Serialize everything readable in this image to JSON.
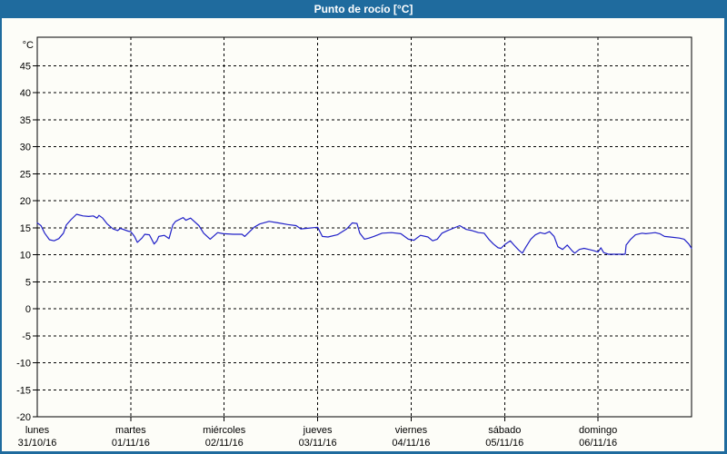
{
  "window": {
    "title": "Punto de rocío [°C]"
  },
  "colors": {
    "titlebar_bg": "#1F6B9E",
    "frame": "#1F6B9E",
    "page_bg": "#FDFDF8",
    "plot_border": "#000000",
    "grid": "#000000",
    "line": "#2121C8",
    "title_text": "#FFFFFF",
    "label_text": "#000000"
  },
  "chart_data": {
    "type": "line",
    "title": "Punto de rocío [°C]",
    "ylabel": "°C",
    "ylim": [
      -20,
      50.3
    ],
    "yticks": [
      45,
      40,
      35,
      30,
      25,
      20,
      15,
      10,
      5,
      0,
      -5,
      -10,
      -15,
      -20
    ],
    "grid": "dashed",
    "legend": "none",
    "days": [
      {
        "name": "lunes",
        "date": "31/10/16"
      },
      {
        "name": "martes",
        "date": "01/11/16"
      },
      {
        "name": "miércoles",
        "date": "02/11/16"
      },
      {
        "name": "jueves",
        "date": "03/11/16"
      },
      {
        "name": "viernes",
        "date": "04/11/16"
      },
      {
        "name": "sábado",
        "date": "05/11/16"
      },
      {
        "name": "domingo",
        "date": "06/11/16"
      }
    ],
    "series": [
      {
        "name": "Punto de rocío",
        "x_unit": "days_from_start",
        "x": [
          0.0,
          0.04,
          0.08,
          0.13,
          0.18,
          0.23,
          0.28,
          0.31,
          0.36,
          0.42,
          0.49,
          0.55,
          0.6,
          0.64,
          0.66,
          0.7,
          0.75,
          0.81,
          0.86,
          0.89,
          0.97,
          1.0,
          1.04,
          1.07,
          1.12,
          1.15,
          1.2,
          1.25,
          1.28,
          1.3,
          1.36,
          1.41,
          1.45,
          1.48,
          1.56,
          1.59,
          1.64,
          1.73,
          1.78,
          1.85,
          1.93,
          1.99,
          2.1,
          2.19,
          2.22,
          2.32,
          2.38,
          2.48,
          2.58,
          2.68,
          2.77,
          2.82,
          2.88,
          3.0,
          3.05,
          3.11,
          3.21,
          3.31,
          3.37,
          3.42,
          3.45,
          3.5,
          3.55,
          3.6,
          3.69,
          3.79,
          3.89,
          3.97,
          4.03,
          4.1,
          4.18,
          4.23,
          4.28,
          4.33,
          4.39,
          4.52,
          4.59,
          4.65,
          4.72,
          4.78,
          4.83,
          4.88,
          4.93,
          4.96,
          5.01,
          5.06,
          5.1,
          5.15,
          5.19,
          5.23,
          5.28,
          5.33,
          5.38,
          5.43,
          5.48,
          5.53,
          5.57,
          5.62,
          5.67,
          5.72,
          5.75,
          5.8,
          5.85,
          5.9,
          5.95,
          6.0,
          6.03,
          6.06,
          6.11,
          6.29,
          6.3,
          6.35,
          6.4,
          6.47,
          6.51,
          6.56,
          6.61,
          6.66,
          6.71,
          6.77,
          6.87,
          6.92,
          6.97,
          7.0
        ],
        "y": [
          15.9,
          15.4,
          14.0,
          12.8,
          12.6,
          13.0,
          14.0,
          15.5,
          16.5,
          17.5,
          17.2,
          17.1,
          17.2,
          16.8,
          17.3,
          16.8,
          15.7,
          14.8,
          14.5,
          14.9,
          14.4,
          14.3,
          13.4,
          12.3,
          13.1,
          13.8,
          13.7,
          12.0,
          12.6,
          13.4,
          13.6,
          13.0,
          15.5,
          16.2,
          16.9,
          16.4,
          16.8,
          15.4,
          14.0,
          12.9,
          14.1,
          13.9,
          13.8,
          13.8,
          13.4,
          15.1,
          15.7,
          16.2,
          15.9,
          15.6,
          15.4,
          14.8,
          14.9,
          15.1,
          13.4,
          13.3,
          13.7,
          14.8,
          15.9,
          15.8,
          14.0,
          12.9,
          13.1,
          13.4,
          14.0,
          14.1,
          13.9,
          12.9,
          12.7,
          13.6,
          13.3,
          12.6,
          12.9,
          14.0,
          14.5,
          15.4,
          14.7,
          14.5,
          14.1,
          14.0,
          12.9,
          12.0,
          11.3,
          11.2,
          12.0,
          12.6,
          11.8,
          10.9,
          10.3,
          11.5,
          12.9,
          13.7,
          14.1,
          13.9,
          14.3,
          13.4,
          11.5,
          11.0,
          11.8,
          10.8,
          10.3,
          11.0,
          11.2,
          11.0,
          10.8,
          10.5,
          11.3,
          10.4,
          10.1,
          10.1,
          11.8,
          12.9,
          13.7,
          14.0,
          13.9,
          14.0,
          14.1,
          13.9,
          13.4,
          13.3,
          13.1,
          12.9,
          12.0,
          11.2
        ]
      }
    ]
  }
}
